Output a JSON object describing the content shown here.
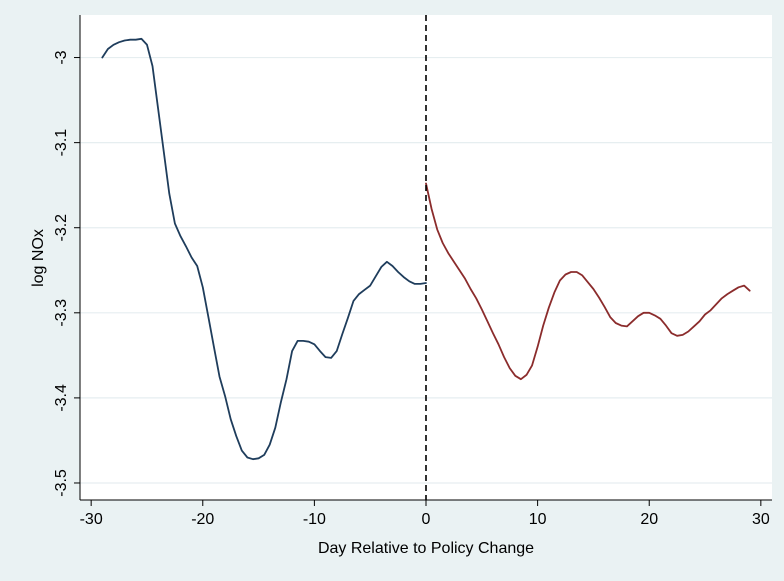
{
  "chart_data": {
    "type": "line",
    "title": "",
    "xlabel": "Day Relative to Policy Change",
    "ylabel": "log NOx",
    "xlim": [
      -31,
      31
    ],
    "ylim": [
      -3.52,
      -2.95
    ],
    "xticks": [
      -30,
      -20,
      -10,
      0,
      10,
      20,
      30
    ],
    "yticks": [
      -3.5,
      -3.4,
      -3.3,
      -3.2,
      -3.1,
      -3.0
    ],
    "xtick_labels": [
      "-30",
      "-20",
      "-10",
      "0",
      "10",
      "20",
      "30"
    ],
    "ytick_labels": [
      "-3.5",
      "-3.4",
      "-3.3",
      "-3.2",
      "-3.1",
      "-3"
    ],
    "grid": "horizontal",
    "legend": "none",
    "vline": {
      "x": 0,
      "style": "dashed",
      "color": "#000000"
    },
    "series": [
      {
        "color": "#1f3d5c",
        "x": [
          -29,
          -28.5,
          -28,
          -27.5,
          -27,
          -26.5,
          -26,
          -25.5,
          -25,
          -24.5,
          -24,
          -23.5,
          -23,
          -22.5,
          -22,
          -21.5,
          -21,
          -20.5,
          -20,
          -19.5,
          -19,
          -18.5,
          -18,
          -17.5,
          -17,
          -16.5,
          -16,
          -15.5,
          -15,
          -14.5,
          -14,
          -13.5,
          -13,
          -12.5,
          -12,
          -11.5,
          -11,
          -10.5,
          -10,
          -9.5,
          -9,
          -8.5,
          -8,
          -7.5,
          -7,
          -6.5,
          -6,
          -5.5,
          -5,
          -4.5,
          -4,
          -3.5,
          -3,
          -2.5,
          -2,
          -1.5,
          -1,
          -0.5,
          0
        ],
        "y": [
          -3.0,
          -2.99,
          -2.985,
          -2.982,
          -2.98,
          -2.979,
          -2.979,
          -2.978,
          -2.985,
          -3.01,
          -3.06,
          -3.11,
          -3.16,
          -3.195,
          -3.21,
          -3.222,
          -3.235,
          -3.245,
          -3.27,
          -3.305,
          -3.34,
          -3.375,
          -3.398,
          -3.425,
          -3.445,
          -3.462,
          -3.47,
          -3.472,
          -3.471,
          -3.467,
          -3.455,
          -3.435,
          -3.405,
          -3.378,
          -3.345,
          -3.333,
          -3.333,
          -3.334,
          -3.337,
          -3.345,
          -3.352,
          -3.353,
          -3.345,
          -3.325,
          -3.306,
          -3.286,
          -3.278,
          -3.273,
          -3.268,
          -3.257,
          -3.246,
          -3.24,
          -3.245,
          -3.252,
          -3.258,
          -3.263,
          -3.266,
          -3.266,
          -3.265
        ]
      },
      {
        "color": "#8b2c2c",
        "x": [
          0,
          0.5,
          1,
          1.5,
          2,
          2.5,
          3,
          3.5,
          4,
          4.5,
          5,
          5.5,
          6,
          6.5,
          7,
          7.5,
          8,
          8.5,
          9,
          9.5,
          10,
          10.5,
          11,
          11.5,
          12,
          12.5,
          13,
          13.5,
          14,
          14.5,
          15,
          15.5,
          16,
          16.5,
          17,
          17.5,
          18,
          18.5,
          19,
          19.5,
          20,
          20.5,
          21,
          21.5,
          22,
          22.5,
          23,
          23.5,
          24,
          24.5,
          25,
          25.5,
          26,
          26.5,
          27,
          27.5,
          28,
          28.5,
          29
        ],
        "y": [
          -3.148,
          -3.178,
          -3.202,
          -3.218,
          -3.23,
          -3.24,
          -3.25,
          -3.26,
          -3.272,
          -3.283,
          -3.296,
          -3.31,
          -3.324,
          -3.337,
          -3.352,
          -3.365,
          -3.374,
          -3.378,
          -3.373,
          -3.362,
          -3.34,
          -3.315,
          -3.294,
          -3.276,
          -3.262,
          -3.255,
          -3.252,
          -3.252,
          -3.256,
          -3.264,
          -3.272,
          -3.282,
          -3.293,
          -3.305,
          -3.312,
          -3.315,
          -3.316,
          -3.31,
          -3.304,
          -3.3,
          -3.3,
          -3.303,
          -3.307,
          -3.315,
          -3.324,
          -3.327,
          -3.326,
          -3.322,
          -3.316,
          -3.31,
          -3.302,
          -3.297,
          -3.29,
          -3.283,
          -3.278,
          -3.274,
          -3.27,
          -3.268,
          -3.274
        ]
      }
    ]
  }
}
